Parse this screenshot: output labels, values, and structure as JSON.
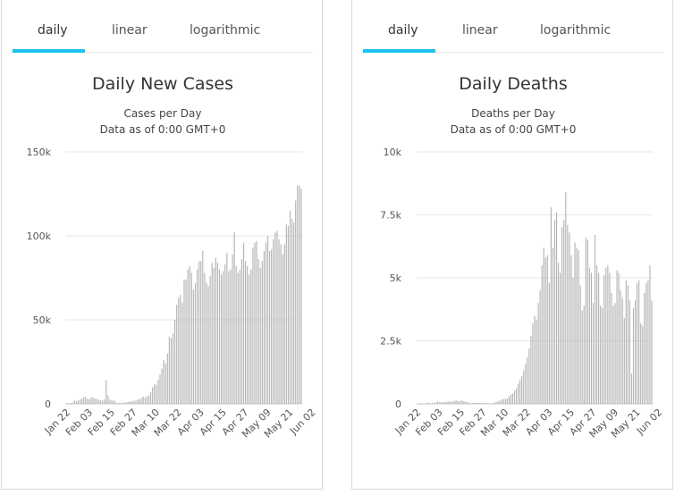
{
  "colors": {
    "accent": "#1ec2f1",
    "bar": "#b3b3b3",
    "grid": "#e6e6e6",
    "text": "#333333"
  },
  "panels": [
    {
      "tabs": [
        "daily",
        "linear",
        "logarithmic"
      ],
      "active_tab": "daily"
    },
    {
      "tabs": [
        "daily",
        "linear",
        "logarithmic"
      ],
      "active_tab": "daily"
    }
  ],
  "chart_data": [
    {
      "type": "bar",
      "title": "Daily New Cases",
      "subtitle_lines": [
        "Cases per Day",
        "Data as of 0:00 GMT+0"
      ],
      "ylim": [
        0,
        150000
      ],
      "y_ticks": [
        0,
        50000,
        100000,
        150000
      ],
      "y_tick_labels": [
        "0",
        "50k",
        "100k",
        "150k"
      ],
      "x_tick_labels": [
        "Jan 22",
        "Feb 03",
        "Feb 15",
        "Feb 27",
        "Mar 10",
        "Mar 22",
        "Apr 03",
        "Apr 15",
        "Apr 27",
        "May 09",
        "May 21",
        "Jun 02"
      ],
      "grid": true,
      "values": [
        580,
        100,
        500,
        700,
        2100,
        1700,
        2000,
        2700,
        3200,
        3800,
        4200,
        3000,
        2600,
        3900,
        3700,
        3200,
        3000,
        2500,
        2100,
        2000,
        2500,
        14100,
        5100,
        2700,
        2000,
        2100,
        1500,
        500,
        600,
        500,
        400,
        800,
        1100,
        1200,
        1400,
        1600,
        1900,
        1900,
        2500,
        2800,
        3500,
        4300,
        3800,
        4400,
        5000,
        7200,
        9800,
        11700,
        11200,
        14200,
        17500,
        21000,
        26000,
        24000,
        30000,
        40000,
        39000,
        42000,
        50000,
        59000,
        63000,
        65000,
        60000,
        74000,
        74000,
        80000,
        82000,
        78000,
        68000,
        72000,
        80000,
        85000,
        85000,
        91000,
        78000,
        72000,
        70000,
        76000,
        84000,
        81000,
        87000,
        84000,
        80000,
        77000,
        79000,
        83000,
        90000,
        79000,
        80000,
        89000,
        102000,
        82000,
        78000,
        80000,
        86000,
        96000,
        85000,
        82000,
        77000,
        80000,
        93000,
        96000,
        97000,
        86000,
        81000,
        85000,
        91000,
        96000,
        100000,
        91000,
        92000,
        98000,
        102000,
        103000,
        98000,
        95000,
        89000,
        95000,
        107000,
        106000,
        115000,
        110000,
        108000,
        121000,
        130000,
        130000,
        128000
      ]
    },
    {
      "type": "bar",
      "title": "Daily Deaths",
      "subtitle_lines": [
        "Deaths per Day",
        "Data as of 0:00 GMT+0"
      ],
      "ylim": [
        0,
        10000
      ],
      "y_ticks": [
        0,
        2500,
        5000,
        7500,
        10000
      ],
      "y_tick_labels": [
        "0",
        "2.5k",
        "5k",
        "7.5k",
        "10k"
      ],
      "x_tick_labels": [
        "Jan 22",
        "Feb 03",
        "Feb 15",
        "Feb 27",
        "Mar 10",
        "Mar 22",
        "Apr 03",
        "Apr 15",
        "Apr 27",
        "May 09",
        "May 21",
        "Jun 02"
      ],
      "grid": true,
      "values": [
        17,
        1,
        8,
        16,
        14,
        26,
        49,
        2,
        38,
        42,
        46,
        103,
        64,
        66,
        73,
        73,
        86,
        89,
        97,
        108,
        97,
        146,
        103,
        98,
        139,
        112,
        99,
        71,
        52,
        29,
        44,
        47,
        35,
        42,
        31,
        38,
        31,
        30,
        28,
        27,
        22,
        24,
        55,
        62,
        105,
        128,
        178,
        190,
        200,
        220,
        290,
        370,
        410,
        520,
        600,
        800,
        960,
        1100,
        1330,
        1600,
        1850,
        2200,
        2700,
        3200,
        3500,
        3350,
        4000,
        4500,
        5500,
        6200,
        5800,
        5900,
        4800,
        7800,
        6200,
        7300,
        7600,
        5600,
        5200,
        7000,
        7300,
        8400,
        7100,
        6800,
        5900,
        5000,
        6400,
        6200,
        6100,
        4700,
        3700,
        3900,
        6600,
        6500,
        5400,
        5200,
        4000,
        6700,
        5500,
        5200,
        3900,
        3800,
        5100,
        5400,
        5500,
        5200,
        4400,
        3900,
        4000,
        5300,
        5200,
        4500,
        4200,
        3400,
        4900,
        4700,
        4100,
        1200,
        3800,
        4100,
        4800,
        4900,
        3200,
        3100,
        4400,
        4800,
        4900,
        5500,
        4100
      ]
    }
  ]
}
